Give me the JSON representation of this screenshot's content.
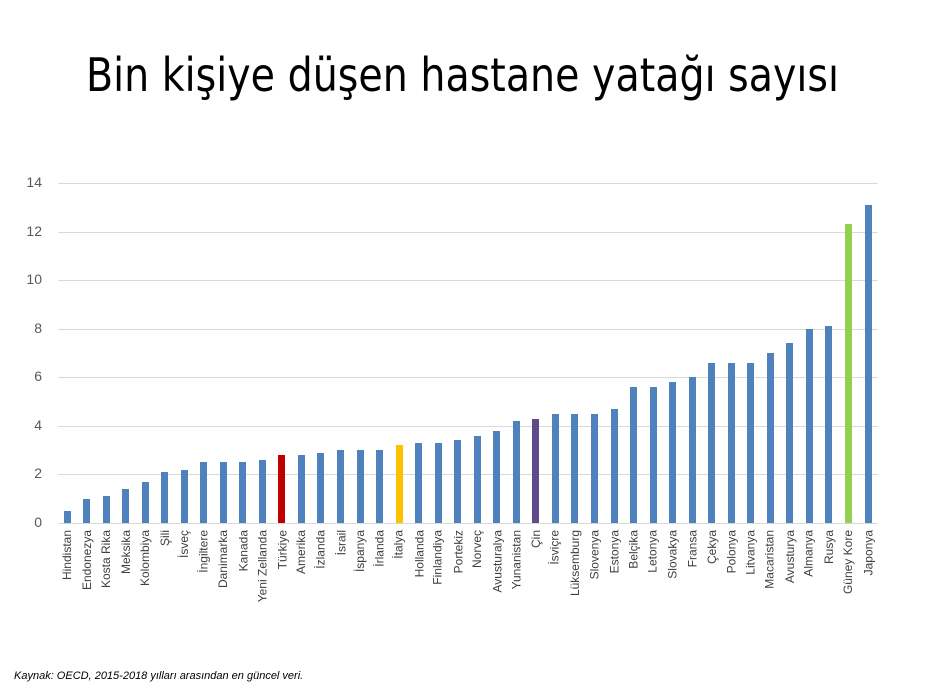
{
  "title": "Bin kişiye düşen hastane yatağı sayısı",
  "source": "Kaynak: OECD, 2015-2018 yılları arasından en güncel veri.",
  "colors": {
    "default": "#4f81bd",
    "turkiye": "#c00000",
    "italya": "#ffc000",
    "cin": "#5f4b8b",
    "guney_kore": "#92d050",
    "grid": "#d9d9d9",
    "axis_text": "#595959"
  },
  "chart_data": {
    "type": "bar",
    "title": "Bin kişiye düşen hastane yatağı sayısı",
    "xlabel": "",
    "ylabel": "",
    "ylim": [
      0,
      14
    ],
    "yticks": [
      0,
      2,
      4,
      6,
      8,
      10,
      12,
      14
    ],
    "grid": true,
    "legend": null,
    "categories": [
      "Hindistan",
      "Endonezya",
      "Kosta Rika",
      "Meksika",
      "Kolombiya",
      "Şili",
      "İsveç",
      "İngiltere",
      "Danimarka",
      "Kanada",
      "Yeni Zellanda",
      "Türkiye",
      "Amerika",
      "İzlanda",
      "İsrail",
      "İspanya",
      "İrlanda",
      "İtalya",
      "Hollanda",
      "Finlandiya",
      "Portekiz",
      "Norveç",
      "Avusturalya",
      "Yunanistan",
      "Çin",
      "İsviçre",
      "Lüksemburg",
      "Slovenya",
      "Estonya",
      "Belçika",
      "Letonya",
      "Slovakya",
      "Fransa",
      "Çekya",
      "Polonya",
      "Litvanya",
      "Macaristan",
      "Avusturya",
      "Almanya",
      "Rusya",
      "Güney Kore",
      "Japonya"
    ],
    "values": [
      0.5,
      1.0,
      1.1,
      1.4,
      1.7,
      2.1,
      2.2,
      2.5,
      2.5,
      2.5,
      2.6,
      2.8,
      2.8,
      2.9,
      3.0,
      3.0,
      3.0,
      3.2,
      3.3,
      3.3,
      3.4,
      3.6,
      3.8,
      4.2,
      4.3,
      4.5,
      4.5,
      4.5,
      4.7,
      5.6,
      5.6,
      5.8,
      6.0,
      6.6,
      6.6,
      6.6,
      7.0,
      7.4,
      8.0,
      8.1,
      12.3,
      13.1
    ],
    "highlight": {
      "Türkiye": "#c00000",
      "İtalya": "#ffc000",
      "Çin": "#5f4b8b",
      "Güney Kore": "#92d050"
    },
    "source": "Kaynak: OECD, 2015-2018 yılları arasından en güncel veri."
  }
}
